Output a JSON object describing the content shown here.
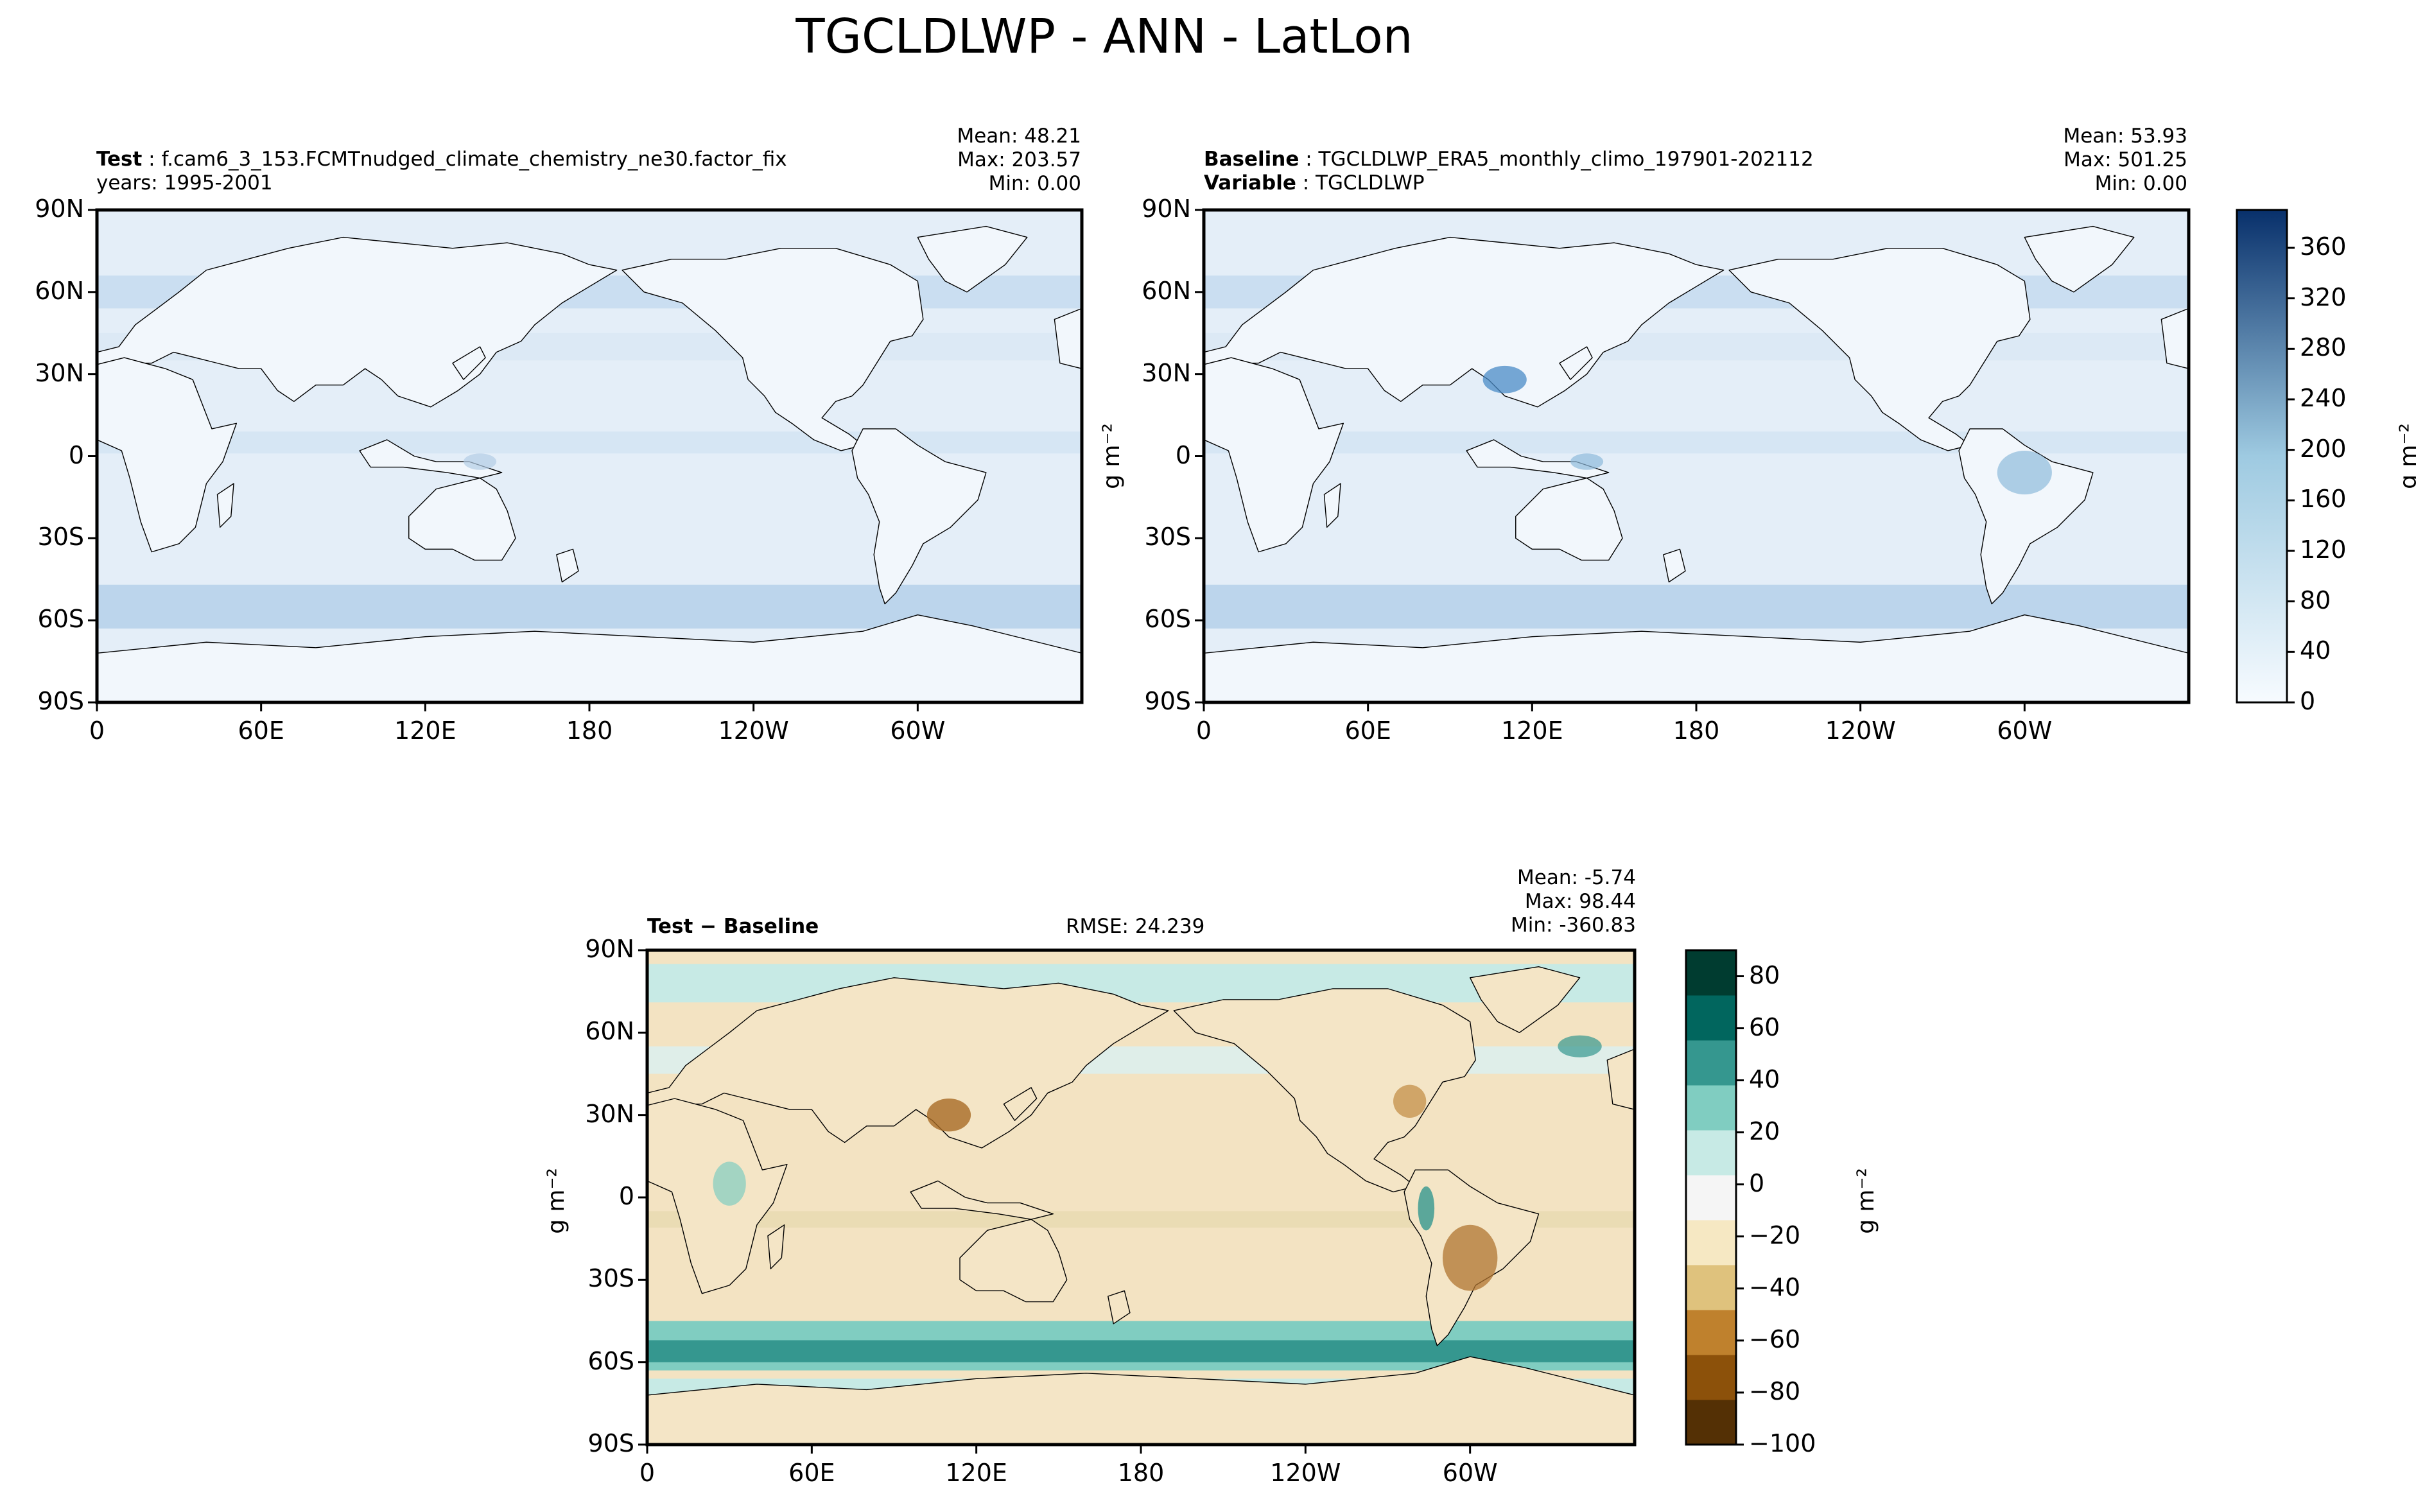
{
  "suptitle": "TGCLDLWP - ANN - LatLon",
  "panels": {
    "test": {
      "label_key": "Test",
      "label_value": "f.cam6_3_153.FCMTnudged_climate_chemistry_ne30.factor_fix",
      "years": "years: 1995-2001",
      "mean": "Mean: 48.21",
      "max": "Max: 203.57",
      "min": "Min:  0.00"
    },
    "baseline": {
      "label_key": "Baseline",
      "label_value": "TGCLDLWP_ERA5_monthly_climo_197901-202112",
      "var_key": "Variable",
      "var_value": "TGCLDLWP",
      "mean": "Mean: 53.93",
      "max": "Max: 501.25",
      "min": "Min:  0.00"
    },
    "diff": {
      "label": "Test − Baseline",
      "rmse": "RMSE: 24.239",
      "mean": "Mean: -5.74",
      "max": "Max: 98.44",
      "min": "Min: -360.83"
    }
  },
  "axes": {
    "lat_ticks": [
      "90N",
      "60N",
      "30N",
      "0",
      "30S",
      "60S",
      "90S"
    ],
    "lon_ticks": [
      "0",
      "60E",
      "120E",
      "180",
      "120W",
      "60W"
    ],
    "units": "g m⁻²"
  },
  "colorbars": {
    "abs": {
      "ticks": [
        "0",
        "40",
        "80",
        "120",
        "160",
        "200",
        "240",
        "280",
        "320",
        "360"
      ],
      "range": [
        0,
        390
      ],
      "colors": [
        "#f7fbff",
        "#08306b"
      ]
    },
    "diff": {
      "ticks": [
        "−100",
        "−80",
        "−60",
        "−40",
        "−20",
        "0",
        "20",
        "40",
        "60",
        "80"
      ],
      "range": [
        -100,
        90
      ],
      "colors": [
        "#543005",
        "#8c510a",
        "#bf812d",
        "#dfc27d",
        "#f6e8c3",
        "#f5f5f5",
        "#c7eae5",
        "#80cdc1",
        "#35978f",
        "#01665e",
        "#003c30"
      ]
    }
  },
  "colors": {
    "ocean_abs": "#e4eef8",
    "land_abs": "#f2f7fc",
    "diff_bg": "#f3e3c2",
    "coast": "#000000"
  }
}
